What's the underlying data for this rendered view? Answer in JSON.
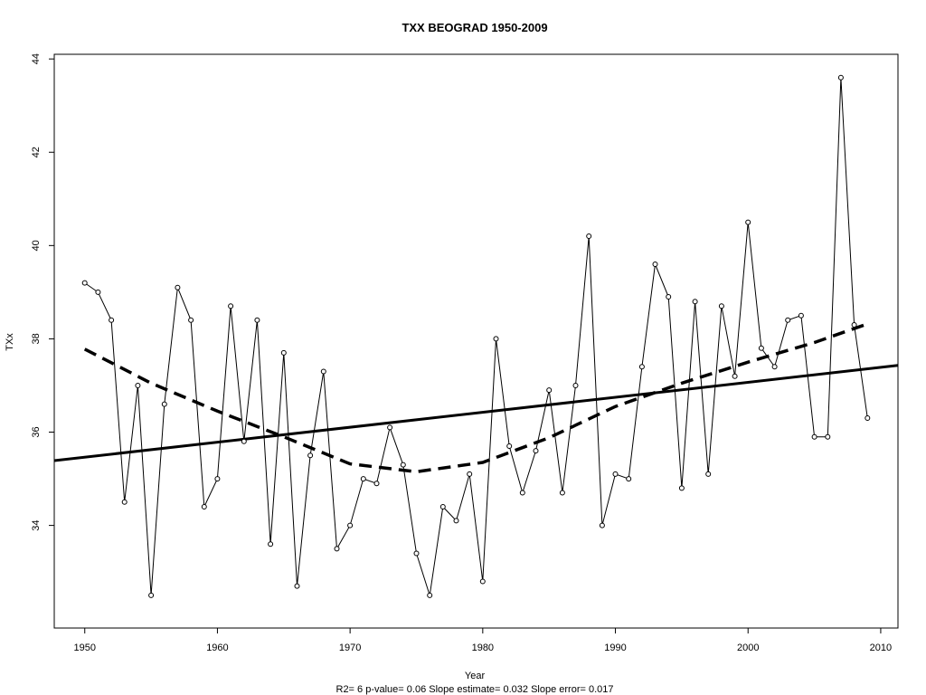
{
  "chart_data": {
    "type": "line",
    "title": "TXX   BEOGRAD 1950-2009",
    "xlabel": "Year",
    "ylabel": "TXx",
    "footer": "R2= 6  p-value= 0.06  Slope estimate= 0.032  Slope error= 0.017",
    "xlim": [
      1947.7,
      2011.3
    ],
    "ylim": [
      31.8,
      44.1
    ],
    "x_ticks": [
      1950,
      1960,
      1970,
      1980,
      1990,
      2000,
      2010
    ],
    "y_ticks": [
      34,
      36,
      38,
      40,
      42,
      44
    ],
    "grid": false,
    "legend": "none",
    "series": [
      {
        "style": "line-with-points",
        "x": [
          1950,
          1951,
          1952,
          1953,
          1954,
          1955,
          1956,
          1957,
          1958,
          1959,
          1960,
          1961,
          1962,
          1963,
          1964,
          1965,
          1966,
          1967,
          1968,
          1969,
          1970,
          1971,
          1972,
          1973,
          1974,
          1975,
          1976,
          1977,
          1978,
          1979,
          1980,
          1981,
          1982,
          1983,
          1984,
          1985,
          1986,
          1987,
          1988,
          1989,
          1990,
          1991,
          1992,
          1993,
          1994,
          1995,
          1996,
          1997,
          1998,
          1999,
          2000,
          2001,
          2002,
          2003,
          2004,
          2005,
          2006,
          2007,
          2008,
          2009
        ],
        "y": [
          39.2,
          39.0,
          38.4,
          34.5,
          37.0,
          32.5,
          36.6,
          39.1,
          38.4,
          34.4,
          35.0,
          38.7,
          35.8,
          38.4,
          33.6,
          37.7,
          32.7,
          35.5,
          37.3,
          33.5,
          34.0,
          35.0,
          34.9,
          36.1,
          35.3,
          33.4,
          32.5,
          34.4,
          34.1,
          35.1,
          32.8,
          38.0,
          35.7,
          34.7,
          35.6,
          36.9,
          34.7,
          37.0,
          40.2,
          34.0,
          35.1,
          35.0,
          37.4,
          39.6,
          38.9,
          34.8,
          38.8,
          35.1,
          38.7,
          37.2,
          40.5,
          37.8,
          37.4,
          38.4,
          38.5,
          35.9,
          35.9,
          43.6,
          38.3,
          36.3
        ]
      },
      {
        "style": "solid-trend",
        "x": [
          1947.7,
          2011.3
        ],
        "y": [
          35.39,
          37.43
        ]
      },
      {
        "style": "dashed-smooth",
        "x": [
          1950,
          1955,
          1960,
          1965,
          1970,
          1975,
          1980,
          1985,
          1990,
          1995,
          2000,
          2005,
          2009
        ],
        "y": [
          37.78,
          37.05,
          36.45,
          35.9,
          35.32,
          35.15,
          35.35,
          35.88,
          36.55,
          37.05,
          37.5,
          37.92,
          38.32
        ]
      }
    ]
  }
}
